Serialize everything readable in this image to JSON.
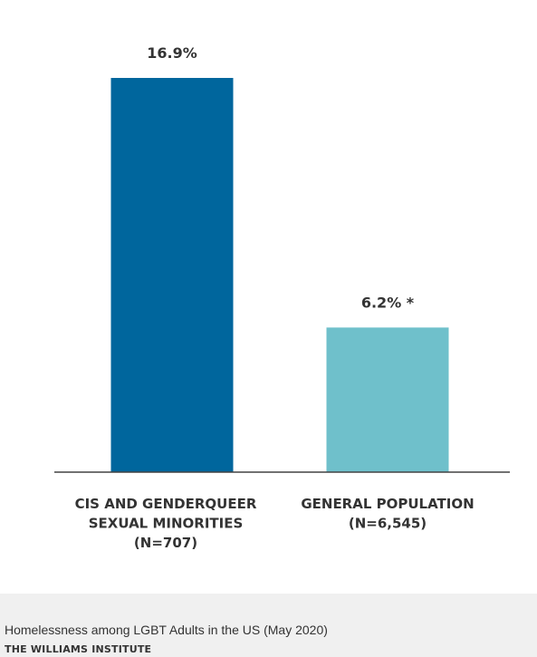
{
  "chart_data": {
    "type": "bar",
    "categories": [
      [
        "CIS AND GENDERQUEER",
        "SEXUAL MINORITIES",
        "(N=707)"
      ],
      [
        "GENERAL POPULATION",
        "(N=6,545)"
      ]
    ],
    "values": [
      16.9,
      6.2
    ],
    "data_labels": [
      "16.9%",
      "6.2% *"
    ],
    "colors": [
      "#00669d",
      "#6fc0cb"
    ],
    "ylim": [
      0,
      18.5
    ],
    "grid": false,
    "title": "",
    "xlabel": "",
    "ylabel": ""
  },
  "caption": "Homelessness among LGBT Adults in the US (May 2020)",
  "source": "THE WILLIAMS INSTITUTE",
  "colors": {
    "axis": "#444444",
    "panel_background": "#ffffff",
    "page_background": "#f0f0f0",
    "text": "#333333"
  }
}
